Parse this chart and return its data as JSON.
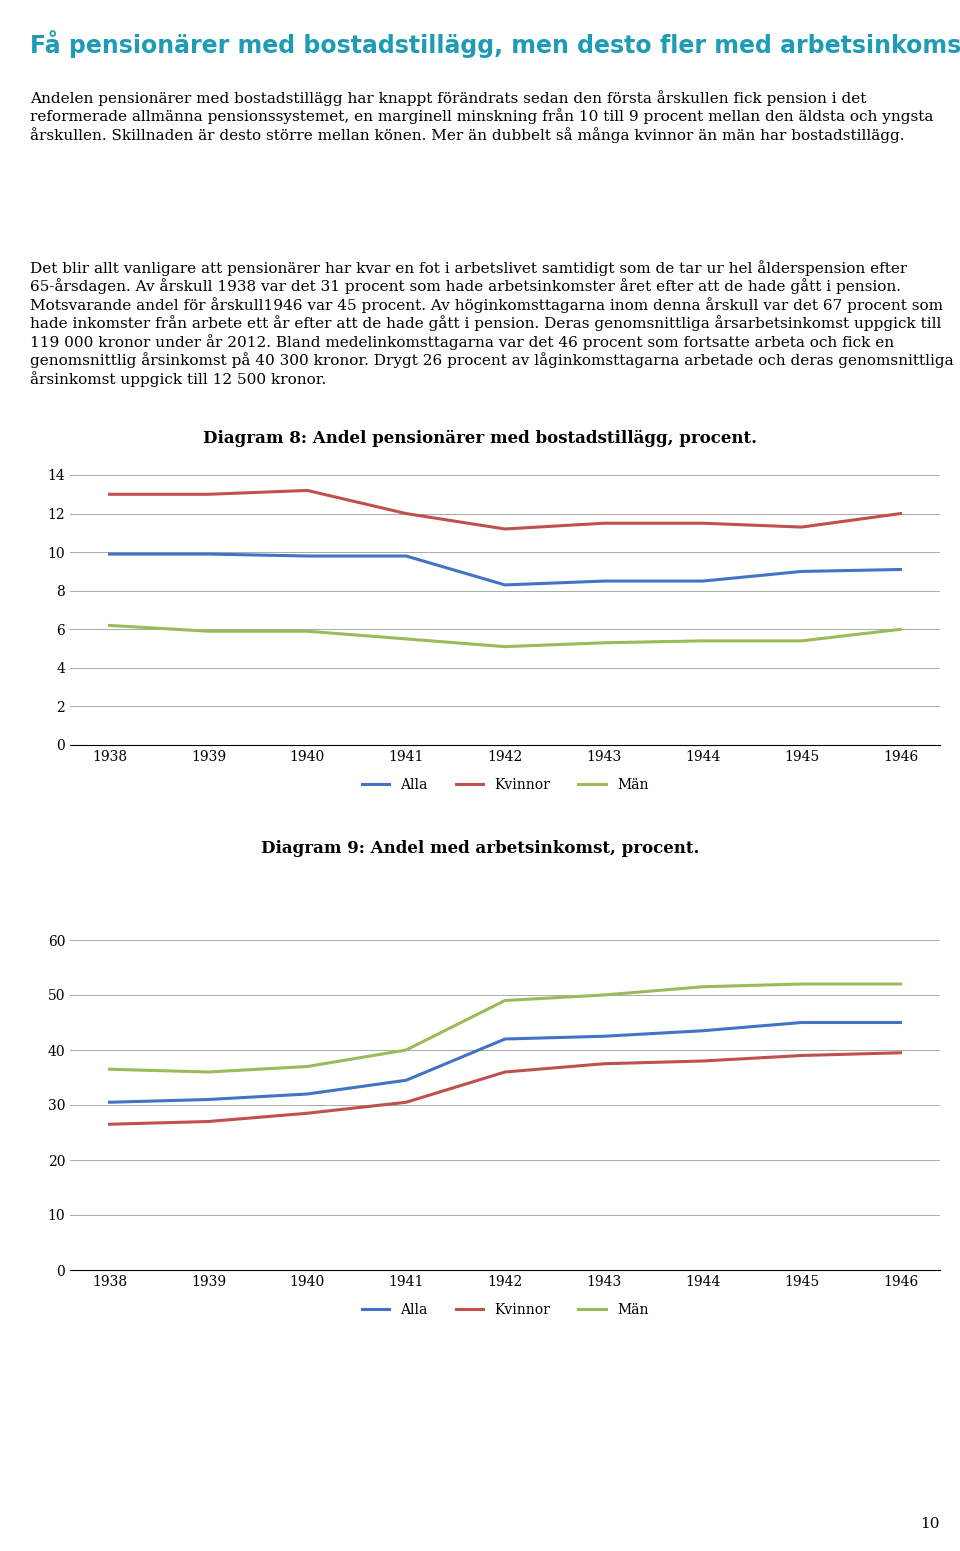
{
  "years": [
    1938,
    1939,
    1940,
    1941,
    1942,
    1943,
    1944,
    1945,
    1946
  ],
  "chart8": {
    "title": "Diagram 8: Andel pensionärer med bostadstillägg, procent.",
    "alla": [
      9.9,
      9.9,
      9.8,
      9.8,
      8.3,
      8.5,
      8.5,
      9.0,
      9.1
    ],
    "kvinnor": [
      13.0,
      13.0,
      13.2,
      12.0,
      11.2,
      11.5,
      11.5,
      11.3,
      12.0
    ],
    "man": [
      6.2,
      5.9,
      5.9,
      5.5,
      5.1,
      5.3,
      5.4,
      5.4,
      6.0
    ],
    "ylim": [
      0,
      14
    ],
    "yticks": [
      0,
      2,
      4,
      6,
      8,
      10,
      12,
      14
    ]
  },
  "chart9": {
    "title": "Diagram 9: Andel med arbetsinkomst, procent.",
    "alla": [
      30.5,
      31.0,
      32.0,
      34.5,
      42.0,
      42.5,
      43.5,
      45.0,
      45.0
    ],
    "kvinnor": [
      26.5,
      27.0,
      28.5,
      30.5,
      36.0,
      37.5,
      38.0,
      39.0,
      39.5
    ],
    "man": [
      36.5,
      36.0,
      37.0,
      40.0,
      49.0,
      50.0,
      51.5,
      52.0,
      52.0
    ],
    "ylim": [
      0,
      60
    ],
    "yticks": [
      0,
      10,
      20,
      30,
      40,
      50,
      60
    ]
  },
  "colors": {
    "alla": "#4472C4",
    "kvinnor": "#C0504D",
    "man": "#9BBB59"
  },
  "legend_labels": [
    "Alla",
    "Kvinnor",
    "Män"
  ],
  "line_width": 2.2,
  "title_text": "Få pensionärer med bostadstillägg, men desto fler med arbetsinkomster",
  "title_color": "#1F9BB5",
  "body_text1": "Andelen pensionärer med bostadstillägg har knappt förändrats sedan den första årskullen fick pension i det reformerade allmänna pensionssystemet, en marginell minskning från 10 till 9 procent mellan den äldsta och yngsta årskullen. Skillnaden är desto större mellan könen. Mer än dubbelt så många kvinnor än män har bostadstillägg.",
  "body_text2": "Det blir allt vanligare att pensionärer har kvar en fot i arbetslivet samtidigt som de tar ur hel ålderspension efter 65-årsdagen. Av årskull 1938 var det 31 procent som hade arbetsinkomster året efter att de hade gått i pension. Motsvarande andel för årskull1946 var 45 procent. Av höginkomsttagarna inom denna årskull var det 67 procent som hade inkomster från arbete ett år efter att de hade gått i pension. Deras genomsnittliga årsarbetsinkomst uppgick till 119 000 kronor under år 2012. Bland medelinkomsttagarna var det 46 procent som fortsatte arbeta och fick en genomsnittlig årsinkomst på 40 300 kronor. Drygt 26 procent av låginkomsttagarna arbetade och deras genomsnittliga årsinkomst uppgick till 12 500 kronor.",
  "page_number": "10",
  "background_color": "#FFFFFF",
  "grid_color": "#AAAAAA",
  "text_color": "#000000"
}
